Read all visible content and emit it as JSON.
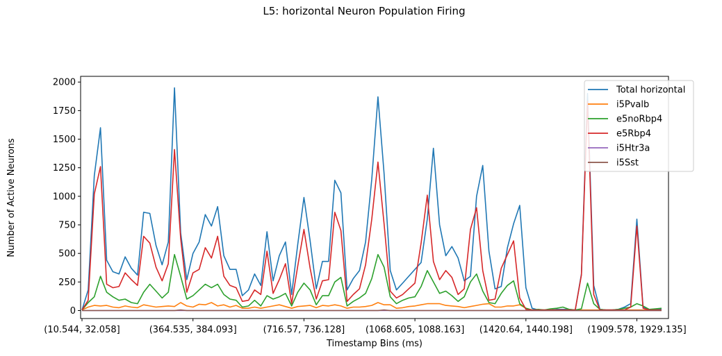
{
  "chart_data": {
    "type": "line",
    "title": "L5: horizontal Neuron Population Firing",
    "xlabel": "Timestamp Bins (ms)",
    "ylabel": "Number of Active Neurons",
    "ylim": [
      -70,
      2050
    ],
    "yticks": [
      0,
      250,
      500,
      750,
      1000,
      1250,
      1500,
      1750,
      2000
    ],
    "xticks": [
      {
        "index": 0,
        "label": "(10.544, 32.058]"
      },
      {
        "index": 18,
        "label": "(364.535, 384.093]"
      },
      {
        "index": 36,
        "label": "(716.57, 736.128]"
      },
      {
        "index": 54,
        "label": "(1068.605, 1088.163]"
      },
      {
        "index": 72,
        "label": "(1420.64, 1440.198]"
      },
      {
        "index": 90,
        "label": "(1909.578, 1929.135]"
      }
    ],
    "legend_position": "top-right",
    "grid": false,
    "series": [
      {
        "name": "Total horizontal",
        "color": "#1f77b4",
        "values": [
          5,
          180,
          1180,
          1600,
          440,
          340,
          320,
          470,
          370,
          310,
          860,
          850,
          570,
          400,
          600,
          1950,
          680,
          270,
          500,
          600,
          840,
          740,
          910,
          480,
          360,
          360,
          130,
          180,
          320,
          220,
          690,
          260,
          480,
          600,
          140,
          580,
          990,
          610,
          190,
          430,
          430,
          1140,
          1030,
          180,
          280,
          350,
          600,
          1150,
          1870,
          1200,
          350,
          180,
          240,
          300,
          360,
          420,
          800,
          1420,
          750,
          480,
          560,
          460,
          260,
          300,
          1000,
          1270,
          520,
          190,
          210,
          550,
          760,
          920,
          200,
          20,
          5,
          5,
          5,
          10,
          10,
          10,
          5,
          320,
          1900,
          220,
          10,
          5,
          5,
          10,
          30,
          60,
          800,
          30,
          5,
          10,
          10
        ]
      },
      {
        "name": "i5Pvalb",
        "color": "#ff7f0e",
        "values": [
          5,
          30,
          45,
          40,
          45,
          30,
          25,
          40,
          30,
          25,
          50,
          40,
          30,
          35,
          40,
          35,
          70,
          40,
          30,
          55,
          50,
          70,
          40,
          50,
          30,
          45,
          20,
          20,
          30,
          20,
          30,
          40,
          50,
          35,
          20,
          35,
          40,
          45,
          25,
          45,
          40,
          50,
          40,
          20,
          30,
          30,
          35,
          45,
          70,
          50,
          50,
          20,
          25,
          35,
          40,
          50,
          60,
          60,
          60,
          45,
          40,
          35,
          25,
          35,
          45,
          55,
          60,
          30,
          30,
          40,
          40,
          50,
          20,
          5,
          5,
          5,
          5,
          5,
          5,
          5,
          5,
          5,
          5,
          5,
          5,
          5,
          5,
          5,
          5,
          5,
          5,
          5,
          5,
          5,
          5
        ]
      },
      {
        "name": "e5noRbp4",
        "color": "#2ca02c",
        "values": [
          5,
          70,
          120,
          300,
          160,
          120,
          90,
          100,
          70,
          60,
          160,
          230,
          170,
          110,
          160,
          490,
          300,
          100,
          130,
          180,
          230,
          200,
          230,
          140,
          100,
          90,
          30,
          40,
          90,
          40,
          130,
          100,
          120,
          150,
          40,
          160,
          240,
          180,
          50,
          130,
          130,
          250,
          290,
          40,
          80,
          110,
          150,
          280,
          490,
          380,
          120,
          60,
          90,
          110,
          120,
          210,
          350,
          250,
          150,
          170,
          130,
          80,
          120,
          250,
          320,
          170,
          70,
          60,
          150,
          220,
          260,
          60,
          20,
          5,
          10,
          5,
          15,
          20,
          30,
          10,
          5,
          15,
          240,
          60,
          10,
          5,
          5,
          10,
          20,
          30,
          60,
          40,
          10,
          15,
          20
        ]
      },
      {
        "name": "e5Rbp4",
        "color": "#d62728",
        "values": [
          5,
          90,
          1020,
          1260,
          230,
          200,
          210,
          330,
          270,
          220,
          650,
          590,
          380,
          260,
          410,
          1410,
          630,
          160,
          330,
          360,
          550,
          460,
          650,
          300,
          220,
          200,
          80,
          90,
          180,
          140,
          520,
          150,
          270,
          410,
          60,
          390,
          710,
          370,
          100,
          260,
          270,
          860,
          700,
          80,
          140,
          190,
          400,
          800,
          1300,
          760,
          170,
          110,
          140,
          190,
          240,
          590,
          1010,
          430,
          270,
          350,
          290,
          140,
          190,
          710,
          900,
          350,
          90,
          100,
          370,
          490,
          610,
          110,
          10,
          5,
          5,
          5,
          5,
          5,
          5,
          5,
          5,
          310,
          1830,
          140,
          5,
          5,
          5,
          5,
          5,
          30,
          740,
          20,
          5,
          5,
          5
        ]
      },
      {
        "name": "i5Htr3a",
        "color": "#9467bd",
        "values": [
          0,
          0,
          0,
          0,
          0,
          0,
          0,
          0,
          0,
          0,
          0,
          0,
          0,
          0,
          0,
          0,
          0,
          0,
          0,
          0,
          0,
          0,
          0,
          0,
          0,
          0,
          0,
          0,
          0,
          0,
          0,
          0,
          0,
          0,
          0,
          0,
          0,
          0,
          0,
          0,
          0,
          0,
          0,
          0,
          0,
          0,
          0,
          0,
          0,
          0,
          0,
          0,
          0,
          0,
          0,
          0,
          0,
          0,
          0,
          0,
          0,
          0,
          0,
          0,
          0,
          0,
          0,
          0,
          0,
          0,
          0,
          0,
          0,
          0,
          0,
          0,
          0,
          0,
          0,
          0,
          0,
          0,
          0,
          0,
          0,
          0,
          0,
          0,
          0,
          0,
          0,
          0,
          0,
          0,
          0
        ]
      },
      {
        "name": "i5Sst",
        "color": "#8c564b",
        "values": [
          0,
          0,
          0,
          0,
          0,
          0,
          0,
          0,
          0,
          0,
          0,
          0,
          0,
          0,
          0,
          0,
          5,
          0,
          0,
          0,
          0,
          0,
          0,
          0,
          0,
          0,
          0,
          0,
          0,
          0,
          0,
          0,
          0,
          0,
          0,
          0,
          0,
          0,
          0,
          0,
          0,
          0,
          0,
          0,
          0,
          0,
          0,
          0,
          0,
          5,
          0,
          0,
          0,
          0,
          0,
          0,
          0,
          0,
          0,
          0,
          0,
          0,
          0,
          0,
          0,
          0,
          0,
          0,
          0,
          0,
          0,
          0,
          0,
          0,
          0,
          0,
          0,
          0,
          0,
          0,
          0,
          0,
          0,
          0,
          0,
          0,
          0,
          0,
          0,
          0,
          0,
          0,
          0,
          0,
          0
        ]
      }
    ]
  }
}
